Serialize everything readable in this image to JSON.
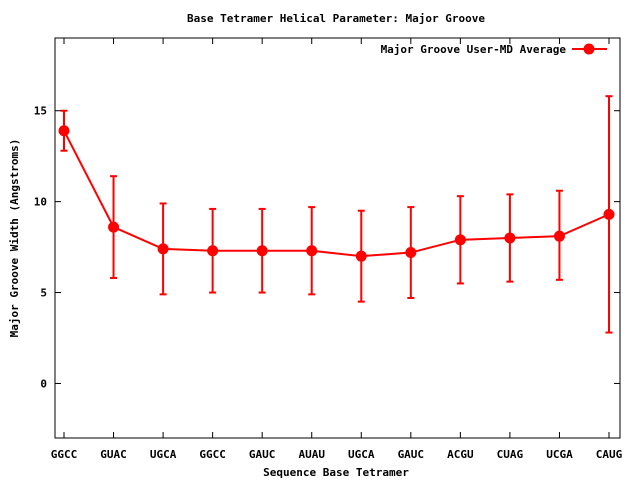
{
  "chart_data": {
    "type": "line",
    "title": "Base Tetramer Helical Parameter: Major Groove",
    "xlabel": "Sequence Base Tetramer",
    "ylabel": "Major Groove Width (Angstroms)",
    "categories": [
      "GGCC",
      "GUAC",
      "UGCA",
      "GGCC",
      "GAUC",
      "AUAU",
      "UGCA",
      "GAUC",
      "ACGU",
      "CUAG",
      "UCGA",
      "CAUG"
    ],
    "ylim": [
      -3,
      19
    ],
    "yticks": [
      0,
      5,
      10,
      15
    ],
    "grid": false,
    "legend_position": "top-right",
    "series": [
      {
        "name": "Major Groove User-MD Average",
        "color": "#ff0000",
        "values": [
          13.9,
          8.6,
          7.4,
          7.3,
          7.3,
          7.3,
          7.0,
          7.2,
          7.9,
          8.0,
          8.1,
          9.3
        ],
        "err_low": [
          12.8,
          5.8,
          4.9,
          5.0,
          5.0,
          4.9,
          4.5,
          4.7,
          5.5,
          5.6,
          5.7,
          2.8
        ],
        "err_high": [
          15.0,
          11.4,
          9.9,
          9.6,
          9.6,
          9.7,
          9.5,
          9.7,
          10.3,
          10.4,
          10.6,
          15.8
        ]
      }
    ]
  }
}
